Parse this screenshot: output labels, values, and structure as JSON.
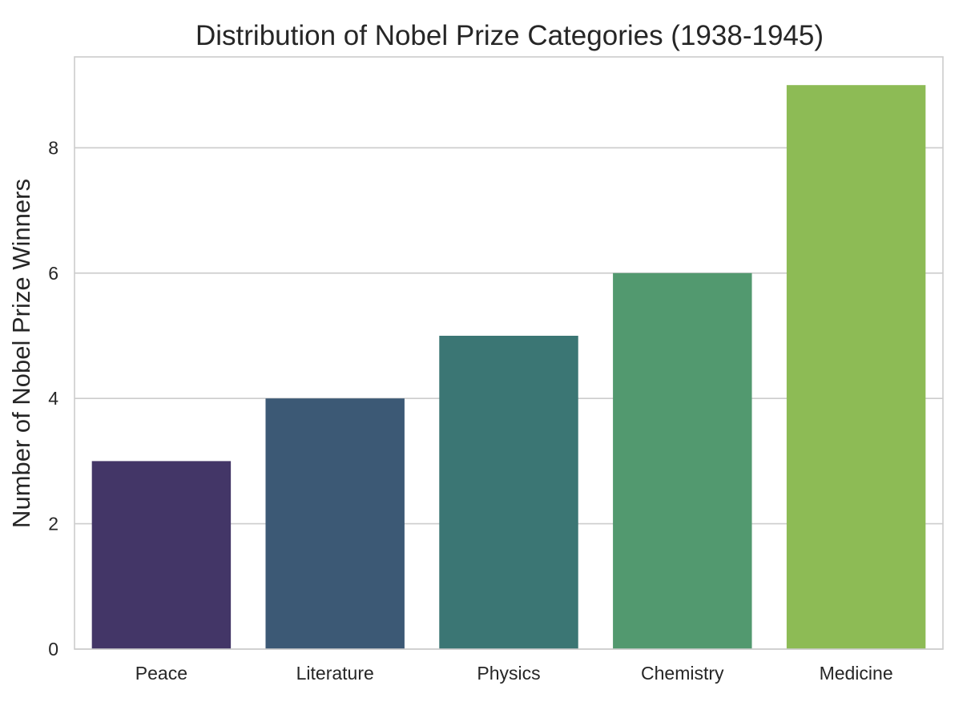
{
  "chart_data": {
    "type": "bar",
    "title": "Distribution of Nobel Prize Categories (1938-1945)",
    "xlabel": "",
    "ylabel": "Number of Nobel Prize Winners",
    "categories": [
      "Peace",
      "Literature",
      "Physics",
      "Chemistry",
      "Medicine"
    ],
    "values": [
      3,
      4,
      5,
      6,
      9
    ],
    "colors": [
      "#433667",
      "#3c5975",
      "#3b7674",
      "#52996f",
      "#8dbb55"
    ],
    "ylim": [
      0,
      9.45
    ],
    "yticks": [
      0,
      2,
      4,
      6,
      8
    ],
    "grid": "horizontal",
    "legend": "none"
  }
}
